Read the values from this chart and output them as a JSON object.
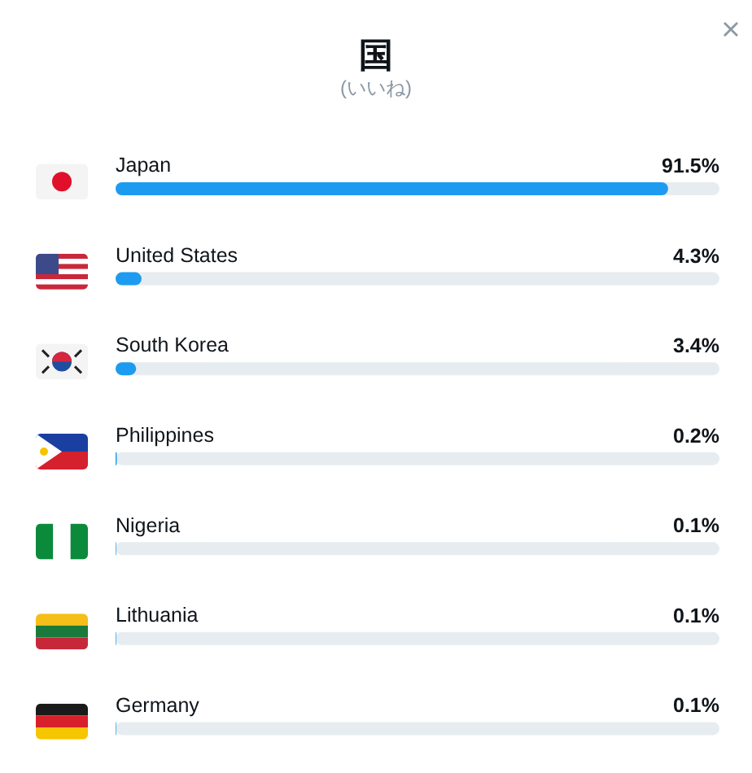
{
  "chart_data": {
    "type": "bar",
    "orientation": "horizontal",
    "title": "国",
    "subtitle": "(いいね)",
    "categories": [
      "Japan",
      "United States",
      "South Korea",
      "Philippines",
      "Nigeria",
      "Lithuania",
      "Germany"
    ],
    "values": [
      91.5,
      4.3,
      3.4,
      0.2,
      0.1,
      0.1,
      0.1
    ],
    "value_labels": [
      "91.5%",
      "4.3%",
      "3.4%",
      "0.2%",
      "0.1%",
      "0.1%",
      "0.1%"
    ],
    "color": "#1d9bf0",
    "xlim": [
      0,
      100
    ]
  }
}
